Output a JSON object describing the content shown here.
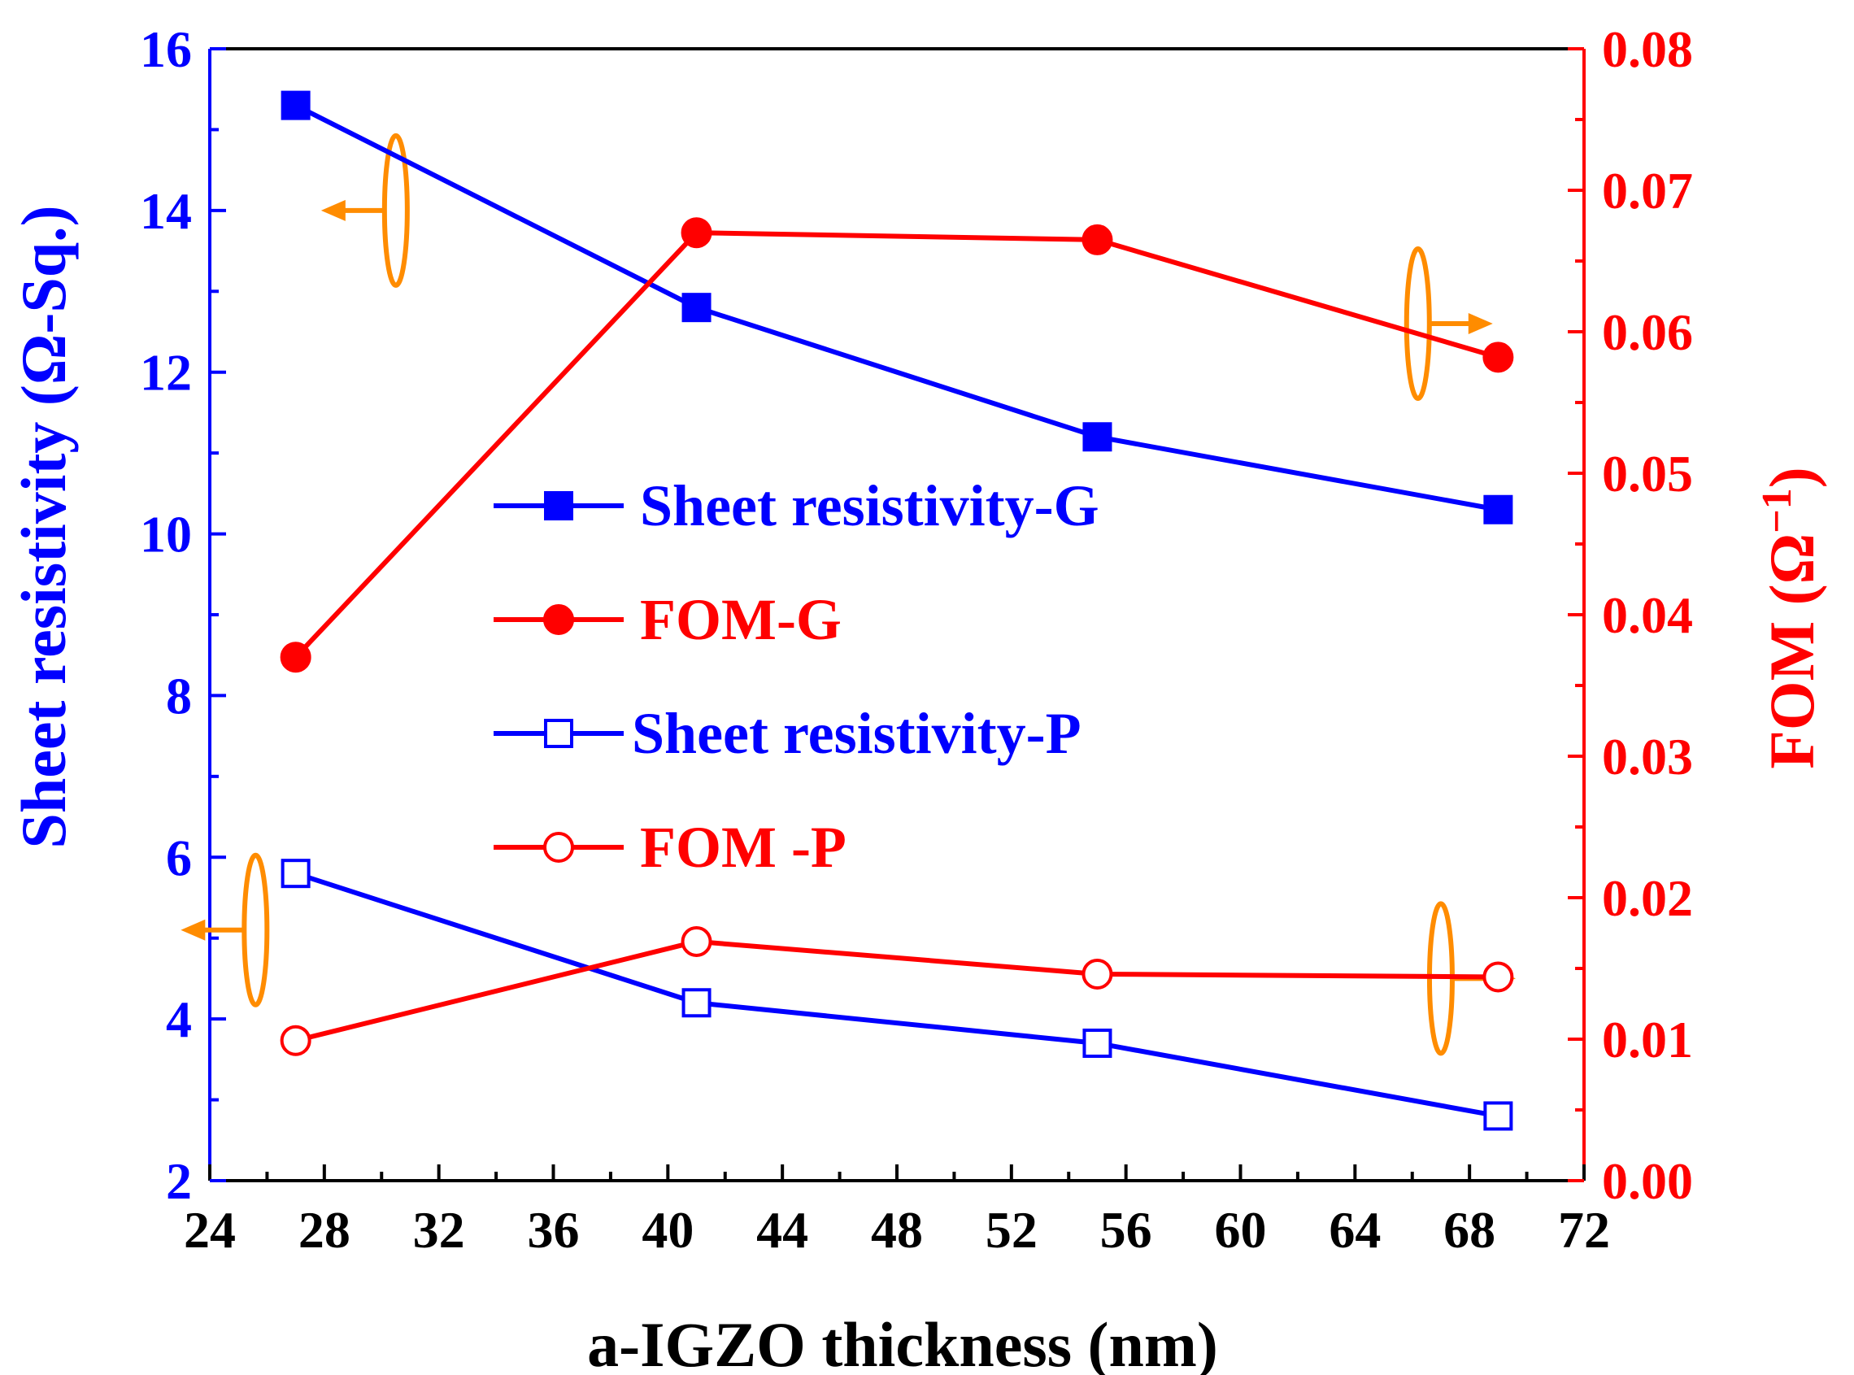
{
  "chart_data": {
    "type": "line",
    "xlabel": "a-IGZO thickness (nm)",
    "ylabel_left": "Sheet resistivity (Ω-Sq.)",
    "ylabel_right": "FOM (Ω",
    "ylabel_right_sup": "−1",
    "ylabel_right_close": ")",
    "xlim": [
      24,
      72
    ],
    "ylim_left": [
      2,
      16
    ],
    "ylim_right": [
      0.0,
      0.08
    ],
    "x_ticks": [
      24,
      28,
      32,
      36,
      40,
      44,
      48,
      52,
      56,
      60,
      64,
      68,
      72
    ],
    "x_tick_labels": [
      "24",
      "28",
      "32",
      "36",
      "40",
      "44",
      "48",
      "52",
      "56",
      "60",
      "64",
      "68",
      "72"
    ],
    "y_left_ticks": [
      2,
      4,
      6,
      8,
      10,
      12,
      14,
      16
    ],
    "y_left_tick_labels": [
      "2",
      "4",
      "6",
      "8",
      "10",
      "12",
      "14",
      "16"
    ],
    "y_right_ticks": [
      0.0,
      0.01,
      0.02,
      0.03,
      0.04,
      0.05,
      0.06,
      0.07,
      0.08
    ],
    "y_right_tick_labels": [
      "0.00",
      "0.01",
      "0.02",
      "0.03",
      "0.04",
      "0.05",
      "0.06",
      "0.07",
      "0.08"
    ],
    "colors": {
      "left_axis": "#0000ff",
      "right_axis": "#ff0000",
      "annotation": "#ff8c00",
      "frame": "#000000"
    },
    "series": [
      {
        "name": "Sheet resistivity-G",
        "axis": "left",
        "color": "#0000ff",
        "marker": "square",
        "filled": true,
        "x": [
          27,
          41,
          55,
          69
        ],
        "values": [
          15.3,
          12.8,
          11.2,
          10.3
        ]
      },
      {
        "name": "FOM-G",
        "axis": "right",
        "color": "#ff0000",
        "marker": "circle",
        "filled": true,
        "x": [
          27,
          41,
          55,
          69
        ],
        "values": [
          0.037,
          0.067,
          0.0665,
          0.0582
        ]
      },
      {
        "name": "Sheet resistivity-P",
        "axis": "left",
        "color": "#0000ff",
        "marker": "square",
        "filled": false,
        "x": [
          27,
          41,
          55,
          69
        ],
        "values": [
          5.8,
          4.2,
          3.7,
          2.8
        ]
      },
      {
        "name": "FOM -P",
        "axis": "right",
        "color": "#ff0000",
        "marker": "circle",
        "filled": false,
        "x": [
          27,
          41,
          55,
          69
        ],
        "values": [
          0.0099,
          0.0169,
          0.0146,
          0.0144
        ]
      }
    ],
    "annotations": [
      {
        "type": "axis-indicator",
        "points_to": "left",
        "x": 30.5,
        "y_left": 14.0
      },
      {
        "type": "axis-indicator",
        "points_to": "right",
        "x": 66.2,
        "y_left": 12.6
      },
      {
        "type": "axis-indicator",
        "points_to": "left",
        "x": 25.6,
        "y_left": 5.1
      },
      {
        "type": "axis-indicator",
        "points_to": "right",
        "x": 67.0,
        "y_left": 4.5
      }
    ]
  }
}
